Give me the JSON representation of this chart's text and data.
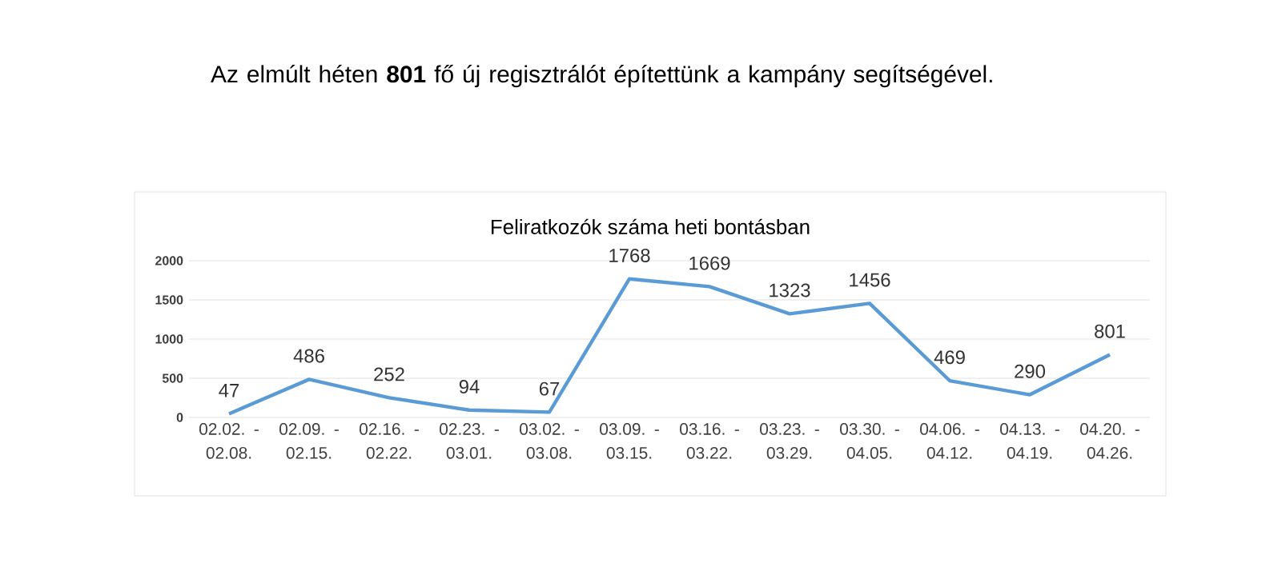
{
  "chart_data": {
    "type": "line",
    "title": "Feliratkozók száma heti bontásban",
    "annotations": [
      "Az elmúlt héten **801** fő új regisztrálót építettünk a kampány segítségével."
    ],
    "categories": [
      "02.02. - 02.08.",
      "02.09. - 02.15.",
      "02.16. - 02.22.",
      "02.23. - 03.01.",
      "03.02. - 03.08.",
      "03.09. - 03.15.",
      "03.16. - 03.22.",
      "03.23. - 03.29.",
      "03.30. - 04.05.",
      "04.06. - 04.12.",
      "04.13. - 04.19.",
      "04.20. - 04.26."
    ],
    "values": [
      47,
      486,
      252,
      94,
      67,
      1768,
      1669,
      1323,
      1456,
      469,
      290,
      801
    ],
    "color": "#5b9bd5",
    "ylim": [
      0,
      2000
    ],
    "yticks": [
      0,
      500,
      1000,
      1500,
      2000
    ],
    "grid": "y",
    "data_labels": true,
    "marker": "none",
    "line_style": "solid"
  }
}
